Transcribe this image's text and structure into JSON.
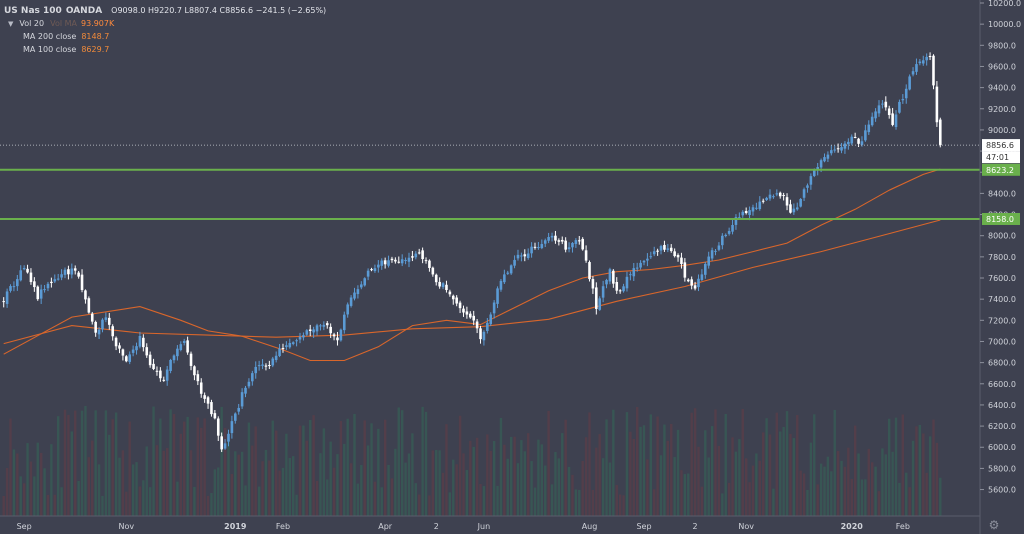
{
  "legend": {
    "symbol": "US Nas 100",
    "source": "OANDA",
    "ohlc": "O9098.0 H9220.7 L8807.4 C8856.6 −241.5 (−2.65%)",
    "volume_label": "Vol 20",
    "volume_ma_label": "Vol MA",
    "volume_value": "93.907K",
    "ma200_label": "MA 200 close",
    "ma200_value": "8148.7",
    "ma100_label": "MA 100 close",
    "ma100_value": "8629.7"
  },
  "price_labels": {
    "last_price": "8856.6",
    "countdown": "47:01",
    "level_upper": "8623.2",
    "level_lower": "8158.0"
  },
  "colors": {
    "background": "#3e4150",
    "candle_up": "#5b9bd5",
    "candle_down": "#ffffff",
    "ma_line": "#d9662b",
    "horizontal_level": "#6ab04c",
    "volume_up": "#2e7d5b",
    "volume_down": "#7a3a3e",
    "last_price_line": "#cfd2d8"
  },
  "chart_data": {
    "type": "candlestick",
    "ylim": [
      5350,
      10200
    ],
    "y_ticks": [
      5600,
      5800,
      6000,
      6200,
      6400,
      6600,
      6800,
      7000,
      7200,
      7400,
      7600,
      7800,
      8000,
      8200,
      8400,
      8600,
      8800,
      9000,
      9200,
      9400,
      9600,
      9800,
      10000,
      10200
    ],
    "y_tick_labels": [
      "5600.0",
      "5800.0",
      "6000.0",
      "6200.0",
      "6400.0",
      "6600.0",
      "6800.0",
      "7000.0",
      "7200.0",
      "7400.0",
      "7600.0",
      "7800.0",
      "8000.0",
      "8200.0",
      "8400.0",
      "8600.0",
      "8800.0",
      "9000.0",
      "9200.0",
      "9400.0",
      "9600.0",
      "9800.0",
      "10000.0",
      "10200.0"
    ],
    "x_tick_labels": [
      "Sep",
      "Nov",
      "2019",
      "Feb",
      "Apr",
      "2",
      "Jun",
      "Aug",
      "Sep",
      "2",
      "Nov",
      "2020",
      "Feb"
    ],
    "x_tick_bars": [
      6,
      36,
      68,
      82,
      112,
      127,
      141,
      172,
      188,
      203,
      218,
      249,
      264
    ],
    "bar_count": 276,
    "price_path": [
      [
        0,
        7390
      ],
      [
        4,
        7600
      ],
      [
        6,
        7690
      ],
      [
        10,
        7420
      ],
      [
        14,
        7570
      ],
      [
        18,
        7660
      ],
      [
        21,
        7680
      ],
      [
        24,
        7380
      ],
      [
        27,
        7070
      ],
      [
        30,
        7250
      ],
      [
        33,
        6950
      ],
      [
        36,
        6800
      ],
      [
        40,
        7050
      ],
      [
        43,
        6800
      ],
      [
        47,
        6620
      ],
      [
        50,
        6900
      ],
      [
        53,
        6980
      ],
      [
        56,
        6680
      ],
      [
        60,
        6380
      ],
      [
        62,
        6250
      ],
      [
        64,
        5960
      ],
      [
        66,
        6150
      ],
      [
        68,
        6300
      ],
      [
        71,
        6580
      ],
      [
        75,
        6780
      ],
      [
        78,
        6790
      ],
      [
        82,
        6950
      ],
      [
        85,
        7020
      ],
      [
        90,
        7120
      ],
      [
        94,
        7180
      ],
      [
        98,
        7030
      ],
      [
        102,
        7420
      ],
      [
        106,
        7620
      ],
      [
        110,
        7720
      ],
      [
        114,
        7760
      ],
      [
        118,
        7800
      ],
      [
        121,
        7840
      ],
      [
        124,
        7770
      ],
      [
        127,
        7560
      ],
      [
        131,
        7480
      ],
      [
        134,
        7290
      ],
      [
        137,
        7250
      ],
      [
        140,
        7010
      ],
      [
        142,
        7190
      ],
      [
        146,
        7560
      ],
      [
        150,
        7760
      ],
      [
        154,
        7860
      ],
      [
        158,
        7940
      ],
      [
        162,
        7980
      ],
      [
        165,
        7890
      ],
      [
        169,
        7980
      ],
      [
        172,
        7620
      ],
      [
        174,
        7320
      ],
      [
        176,
        7550
      ],
      [
        178,
        7650
      ],
      [
        180,
        7480
      ],
      [
        183,
        7580
      ],
      [
        186,
        7720
      ],
      [
        190,
        7830
      ],
      [
        194,
        7890
      ],
      [
        198,
        7800
      ],
      [
        200,
        7620
      ],
      [
        203,
        7520
      ],
      [
        206,
        7720
      ],
      [
        210,
        7940
      ],
      [
        214,
        8120
      ],
      [
        218,
        8220
      ],
      [
        222,
        8300
      ],
      [
        226,
        8380
      ],
      [
        229,
        8410
      ],
      [
        231,
        8220
      ],
      [
        234,
        8340
      ],
      [
        237,
        8560
      ],
      [
        241,
        8720
      ],
      [
        245,
        8850
      ],
      [
        249,
        8910
      ],
      [
        252,
        8890
      ],
      [
        255,
        9120
      ],
      [
        258,
        9250
      ],
      [
        261,
        9080
      ],
      [
        264,
        9320
      ],
      [
        267,
        9580
      ],
      [
        270,
        9660
      ],
      [
        272,
        9710
      ],
      [
        273,
        9400
      ],
      [
        274,
        9098
      ],
      [
        275,
        8856.6
      ]
    ],
    "series": [
      {
        "name": "MA 100 close",
        "points": [
          [
            0,
            6880
          ],
          [
            20,
            7230
          ],
          [
            40,
            7330
          ],
          [
            52,
            7200
          ],
          [
            60,
            7100
          ],
          [
            70,
            7050
          ],
          [
            82,
            6920
          ],
          [
            90,
            6820
          ],
          [
            100,
            6820
          ],
          [
            110,
            6950
          ],
          [
            120,
            7150
          ],
          [
            130,
            7200
          ],
          [
            140,
            7160
          ],
          [
            150,
            7320
          ],
          [
            160,
            7480
          ],
          [
            170,
            7600
          ],
          [
            180,
            7660
          ],
          [
            190,
            7680
          ],
          [
            200,
            7720
          ],
          [
            210,
            7770
          ],
          [
            220,
            7850
          ],
          [
            230,
            7930
          ],
          [
            240,
            8100
          ],
          [
            250,
            8250
          ],
          [
            260,
            8430
          ],
          [
            270,
            8580
          ],
          [
            275,
            8629.7
          ]
        ]
      },
      {
        "name": "MA 200 close",
        "points": [
          [
            0,
            6980
          ],
          [
            20,
            7150
          ],
          [
            40,
            7080
          ],
          [
            60,
            7060
          ],
          [
            80,
            7040
          ],
          [
            100,
            7060
          ],
          [
            120,
            7120
          ],
          [
            140,
            7140
          ],
          [
            160,
            7210
          ],
          [
            180,
            7380
          ],
          [
            200,
            7520
          ],
          [
            220,
            7700
          ],
          [
            240,
            7850
          ],
          [
            260,
            8020
          ],
          [
            275,
            8148.7
          ]
        ]
      }
    ],
    "levels": [
      8623.2,
      8158.0
    ],
    "last_price": 8856.6
  }
}
